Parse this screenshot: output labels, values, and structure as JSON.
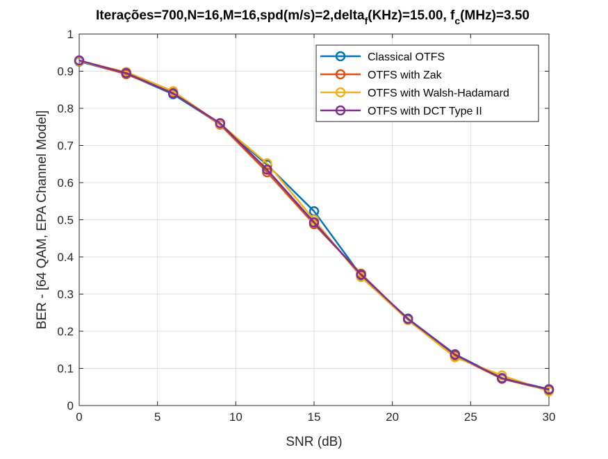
{
  "chart_data": {
    "type": "line",
    "title": "Iterações=700,N=16,M=16,spd(m/s)=2,delta",
    "title_sub_1": "f",
    "title_mid": "(KHz)=15.00, f",
    "title_sub_2": "c",
    "title_end": "(MHz)=3.50",
    "xlabel": "SNR (dB)",
    "ylabel": "BER - [64 QAM, EPA Channel Model]",
    "xlim": [
      0,
      30
    ],
    "ylim": [
      0,
      1
    ],
    "xticks": [
      "0",
      "5",
      "10",
      "15",
      "20",
      "25",
      "30"
    ],
    "yticks": [
      "0",
      "0.1",
      "0.2",
      "0.3",
      "0.4",
      "0.5",
      "0.6",
      "0.7",
      "0.8",
      "0.9",
      "1"
    ],
    "grid": true,
    "legend_position": "top-right",
    "marker": "circle",
    "x": [
      0,
      3,
      6,
      9,
      12,
      15,
      18,
      21,
      24,
      27,
      30
    ],
    "series": [
      {
        "name": "Classical OTFS",
        "color": "#0072BD",
        "values": [
          0.926,
          0.893,
          0.838,
          0.757,
          0.648,
          0.523,
          0.35,
          0.234,
          0.138,
          0.074,
          0.044
        ]
      },
      {
        "name": "OTFS with Zak",
        "color": "#D95319",
        "values": [
          0.928,
          0.892,
          0.842,
          0.756,
          0.628,
          0.488,
          0.355,
          0.231,
          0.134,
          0.072,
          0.041
        ]
      },
      {
        "name": "OTFS with Walsh-Hadamard",
        "color": "#EDB120",
        "values": [
          0.927,
          0.898,
          0.846,
          0.758,
          0.652,
          0.5,
          0.346,
          0.23,
          0.13,
          0.081,
          0.038
        ]
      },
      {
        "name": "OTFS with DCT Type II",
        "color": "#7E2F8E",
        "values": [
          0.929,
          0.895,
          0.84,
          0.76,
          0.635,
          0.493,
          0.352,
          0.233,
          0.137,
          0.073,
          0.043
        ]
      }
    ]
  }
}
